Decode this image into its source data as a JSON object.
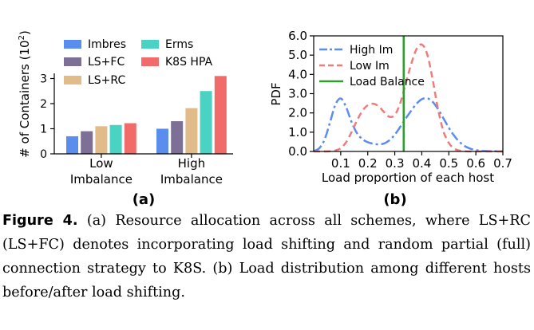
{
  "chart_data": [
    {
      "type": "bar",
      "panel_label": "(a)",
      "ylabel_text": "# of Containers (10",
      "ylabel_exp": "2",
      "ylabel_close": ")",
      "categories": [
        {
          "line1": "Low",
          "line2": "Imbalance"
        },
        {
          "line1": "High",
          "line2": "Imbalance"
        }
      ],
      "series": [
        {
          "name": "Imbres",
          "color": "#5b8def",
          "values": [
            0.7,
            1.0
          ]
        },
        {
          "name": "LS+FC",
          "color": "#7e6f96",
          "values": [
            0.9,
            1.3
          ]
        },
        {
          "name": "LS+RC",
          "color": "#e2bb8a",
          "values": [
            1.1,
            1.82
          ]
        },
        {
          "name": "Erms",
          "color": "#4ad2c2",
          "values": [
            1.15,
            2.5
          ]
        },
        {
          "name": "K8S HPA",
          "color": "#f26b6b",
          "values": [
            1.22,
            3.1
          ]
        }
      ],
      "yticks": [
        "0",
        "1",
        "2",
        "3"
      ],
      "ylim": [
        0,
        3.3
      ]
    },
    {
      "type": "line",
      "panel_label": "(b)",
      "ylabel": "PDF",
      "xlabel": "Load proportion of each host",
      "xticks": [
        "0.1",
        "0.2",
        "0.3",
        "0.4",
        "0.5",
        "0.6",
        "0.7"
      ],
      "yticks": [
        "0.0",
        "1.0",
        "2.0",
        "3.0",
        "4.0",
        "5.0",
        "6.0"
      ],
      "xlim": [
        0.0,
        0.7
      ],
      "ylim": [
        0.0,
        6.0
      ],
      "series": [
        {
          "name": "High Im",
          "color": "#5b8def",
          "style": "dashdot",
          "x": [
            0.0,
            0.02,
            0.04,
            0.06,
            0.08,
            0.1,
            0.12,
            0.14,
            0.16,
            0.18,
            0.2,
            0.22,
            0.24,
            0.26,
            0.28,
            0.3,
            0.32,
            0.34,
            0.36,
            0.38,
            0.4,
            0.42,
            0.44,
            0.46,
            0.48,
            0.5,
            0.52,
            0.54,
            0.56,
            0.58,
            0.6,
            0.62,
            0.64,
            0.66,
            0.68,
            0.7
          ],
          "y": [
            0.02,
            0.16,
            0.61,
            1.49,
            2.42,
            2.75,
            2.3,
            1.53,
            0.95,
            0.64,
            0.48,
            0.4,
            0.37,
            0.41,
            0.58,
            0.87,
            1.27,
            1.7,
            2.1,
            2.47,
            2.71,
            2.76,
            2.58,
            2.2,
            1.72,
            1.23,
            0.81,
            0.49,
            0.27,
            0.14,
            0.07,
            0.03,
            0.02,
            0.01,
            0.01,
            0.0
          ]
        },
        {
          "name": "Low Im",
          "color": "#ef7b7b",
          "style": "dashed",
          "x": [
            0.0,
            0.02,
            0.04,
            0.06,
            0.08,
            0.1,
            0.12,
            0.14,
            0.16,
            0.18,
            0.2,
            0.22,
            0.24,
            0.26,
            0.28,
            0.3,
            0.32,
            0.34,
            0.36,
            0.38,
            0.4,
            0.42,
            0.44,
            0.46,
            0.48,
            0.5,
            0.52,
            0.54,
            0.56,
            0.58,
            0.6,
            0.62,
            0.64,
            0.66,
            0.68,
            0.7
          ],
          "y": [
            0.0,
            0.0,
            0.0,
            0.01,
            0.05,
            0.17,
            0.48,
            1.0,
            1.6,
            2.1,
            2.4,
            2.48,
            2.35,
            2.05,
            1.8,
            1.89,
            2.5,
            3.5,
            4.5,
            5.3,
            5.55,
            5.05,
            3.75,
            2.2,
            1.05,
            0.44,
            0.15,
            0.04,
            0.01,
            0.0,
            0.0,
            0.0,
            0.0,
            0.0,
            0.0,
            0.0
          ]
        },
        {
          "name": "Load Balance",
          "color": "#2ca02c",
          "style": "solid",
          "vertical_x": 0.333
        }
      ]
    }
  ],
  "caption": {
    "label": "Figure 4.",
    "text": " (a) Resource allocation across all schemes, where LS+RC (LS+FC) denotes incorporating load shifting and random partial (full) connection strategy to K8S. (b) Load distribution among different hosts before/after load shifting."
  }
}
